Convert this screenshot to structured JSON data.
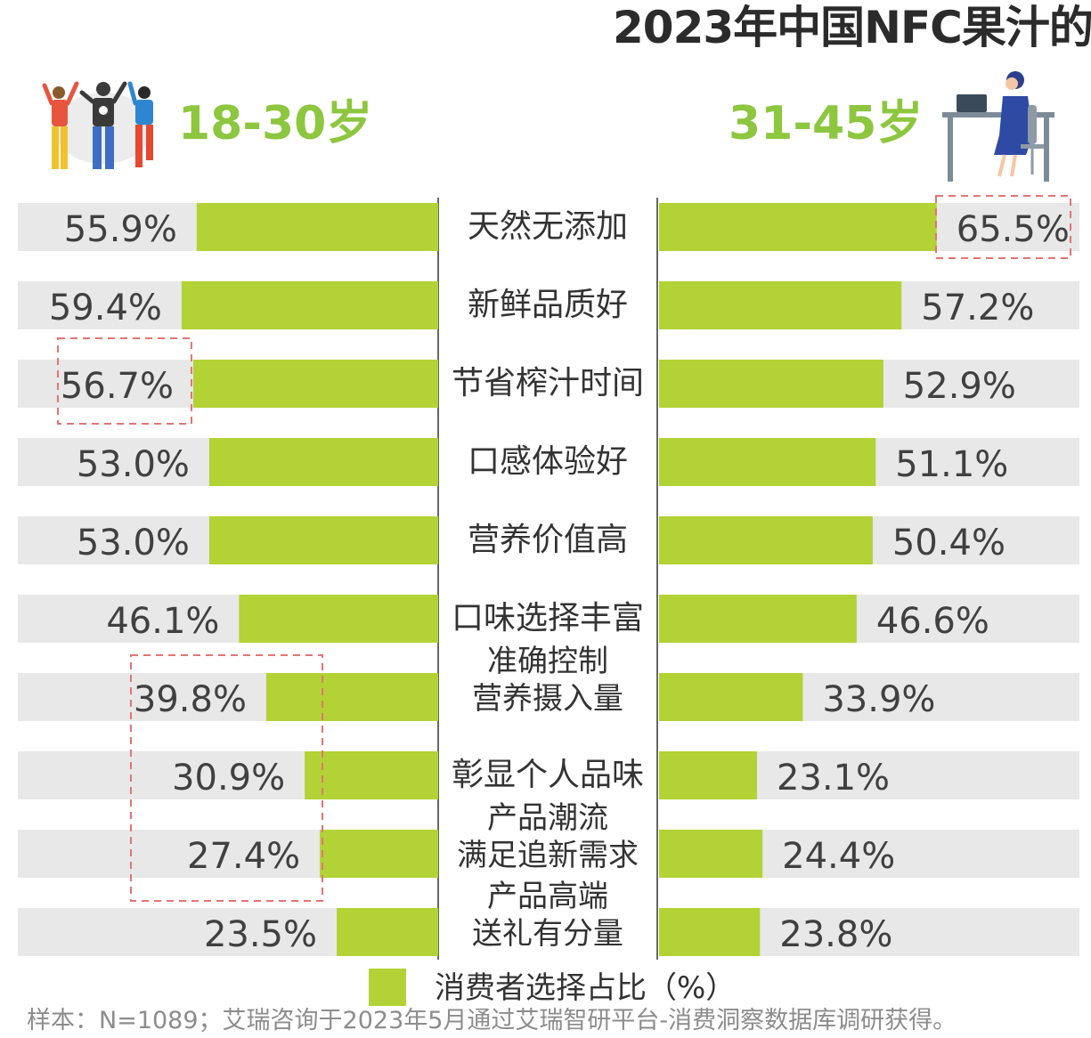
{
  "title": "2023年中国NFC果汁的",
  "left_group": "18-30岁",
  "right_group": "31-45岁",
  "legend": "消费者选择占比（%）",
  "source": "样本：N=1089；艾瑞咨询于2023年5月通过艾瑞智研平台-消费洞察数据库调研获得。",
  "colors": {
    "bar": "#b2d235",
    "track": "#e8e8e8",
    "accent_text": "#8dc63f",
    "highlight": "#e57373",
    "value_text": "#404040",
    "divider": "#666666"
  },
  "icons": [
    "young-people-illustration",
    "office-woman-illustration"
  ],
  "chart_data": {
    "type": "bar",
    "categories": [
      [
        "天然无添加"
      ],
      [
        "新鲜品质好"
      ],
      [
        "节省榨汁时间"
      ],
      [
        "口感体验好"
      ],
      [
        "营养价值高"
      ],
      [
        "口味选择丰富"
      ],
      [
        "准确控制",
        "营养摄入量"
      ],
      [
        "彰显个人品味"
      ],
      [
        "产品潮流",
        "满足追新需求"
      ],
      [
        "产品高端",
        "送礼有分量"
      ]
    ],
    "series": [
      {
        "name": "18-30岁",
        "values": [
          55.9,
          59.4,
          56.7,
          53.0,
          53.0,
          46.1,
          39.8,
          30.9,
          27.4,
          23.5
        ]
      },
      {
        "name": "31-45岁",
        "values": [
          65.5,
          57.2,
          52.9,
          51.1,
          50.4,
          46.6,
          33.9,
          23.1,
          24.4,
          23.8
        ]
      }
    ],
    "value_labels": {
      "left": [
        "55.9%",
        "59.4%",
        "56.7%",
        "53.0%",
        "53.0%",
        "46.1%",
        "39.8%",
        "30.9%",
        "27.4%",
        "23.5%"
      ],
      "right": [
        "65.5%",
        "57.2%",
        "52.9%",
        "51.1%",
        "50.4%",
        "46.6%",
        "33.9%",
        "23.1%",
        "24.4%",
        "23.8%"
      ]
    },
    "highlights": {
      "left": [
        2,
        6,
        7,
        8
      ],
      "right": [
        0
      ]
    },
    "orientation": "horizontal, mirrored (butterfly)",
    "xlim": [
      0,
      100
    ],
    "grid": false,
    "legend_position": "bottom"
  }
}
